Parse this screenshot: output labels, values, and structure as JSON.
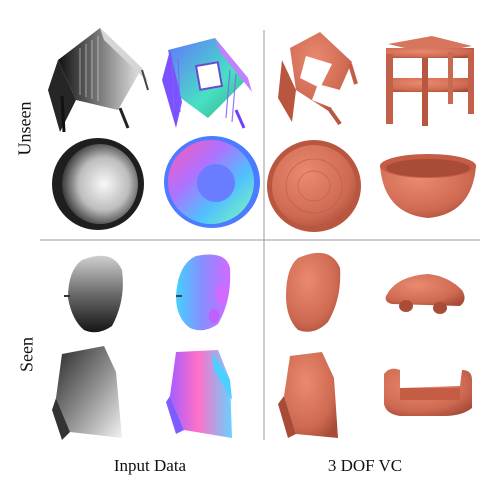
{
  "row_labels": {
    "unseen": "Unseen",
    "seen": "Seen"
  },
  "column_labels": {
    "input": "Input Data",
    "output": "3 DOF VC"
  },
  "colors": {
    "divider": "#9a9a9a",
    "clay": "#cf6a52",
    "clay_dark": "#a44a36"
  },
  "panels": [
    {
      "name": "chair-depth-image",
      "group": "unseen",
      "column": "input"
    },
    {
      "name": "chair-normal-image",
      "group": "unseen",
      "column": "input"
    },
    {
      "name": "chair-reconstruction-a",
      "group": "unseen",
      "column": "output"
    },
    {
      "name": "chair-reconstruction-b",
      "group": "unseen",
      "column": "output"
    },
    {
      "name": "bowl-depth-image",
      "group": "unseen",
      "column": "input"
    },
    {
      "name": "bowl-normal-image",
      "group": "unseen",
      "column": "input"
    },
    {
      "name": "bowl-reconstruction-a",
      "group": "unseen",
      "column": "output"
    },
    {
      "name": "bowl-reconstruction-b",
      "group": "unseen",
      "column": "output"
    },
    {
      "name": "car-depth-image",
      "group": "seen",
      "column": "input"
    },
    {
      "name": "car-normal-image",
      "group": "seen",
      "column": "input"
    },
    {
      "name": "car-reconstruction-a",
      "group": "seen",
      "column": "output"
    },
    {
      "name": "car-reconstruction-b",
      "group": "seen",
      "column": "output"
    },
    {
      "name": "sofa-depth-image",
      "group": "seen",
      "column": "input"
    },
    {
      "name": "sofa-normal-image",
      "group": "seen",
      "column": "input"
    },
    {
      "name": "sofa-reconstruction-a",
      "group": "seen",
      "column": "output"
    },
    {
      "name": "sofa-reconstruction-b",
      "group": "seen",
      "column": "output"
    }
  ]
}
